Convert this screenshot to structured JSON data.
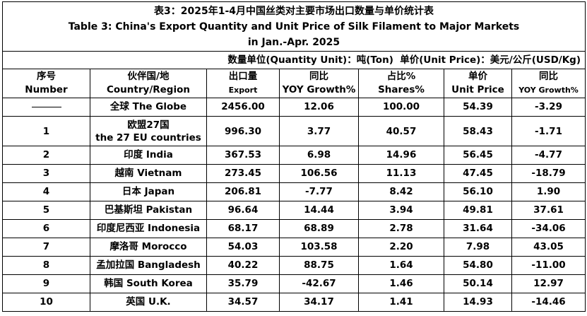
{
  "title": {
    "zh": "表3：2025年1-4月中国丝类对主要市场出口数量与单价统计表",
    "en1": "Table 3: China's Export Quantity and Unit Price of Silk Filament to Major Markets",
    "en2": "in Jan.-Apr. 2025"
  },
  "units": "数量单位(Quantity Unit)：吨(Ton)  单价(Unit Price)：美元/公斤(USD/Kg)",
  "headers": {
    "number": {
      "zh": "序号",
      "en": "Number"
    },
    "country": {
      "zh": "伙伴国/地",
      "en": "Country/Region"
    },
    "export": {
      "zh": "出口量",
      "en": "Export"
    },
    "yoy1": {
      "zh": "同比",
      "en": "YOY Growth%"
    },
    "shares": {
      "zh": "占比%",
      "en": "Shares%"
    },
    "price": {
      "zh": "单价",
      "en": "Unit Price"
    },
    "yoy2": {
      "zh": "同比",
      "en": "YOY Growth%"
    }
  },
  "rows": [
    {
      "num": "",
      "country": "全球 The Globe",
      "country2": "",
      "export": "2456.00",
      "yoy": "12.06",
      "share": "100.00",
      "price": "54.39",
      "price_yoy": "-3.29"
    },
    {
      "num": "1",
      "country": "欧盟27国",
      "country2": "the 27 EU countries",
      "export": "996.30",
      "yoy": "3.77",
      "share": "40.57",
      "price": "58.43",
      "price_yoy": "-1.71"
    },
    {
      "num": "2",
      "country": "印度 India",
      "country2": "",
      "export": "367.53",
      "yoy": "6.98",
      "share": "14.96",
      "price": "56.45",
      "price_yoy": "-4.77"
    },
    {
      "num": "3",
      "country": "越南 Vietnam",
      "country2": "",
      "export": "273.45",
      "yoy": "106.56",
      "share": "11.13",
      "price": "47.45",
      "price_yoy": "-18.79"
    },
    {
      "num": "4",
      "country": "日本 Japan",
      "country2": "",
      "export": "206.81",
      "yoy": "-7.77",
      "share": "8.42",
      "price": "56.10",
      "price_yoy": "1.90"
    },
    {
      "num": "5",
      "country": "巴基斯坦 Pakistan",
      "country2": "",
      "export": "96.64",
      "yoy": "14.44",
      "share": "3.94",
      "price": "49.81",
      "price_yoy": "37.61"
    },
    {
      "num": "6",
      "country": "印度尼西亚 Indonesia",
      "country2": "",
      "export": "68.17",
      "yoy": "68.89",
      "share": "2.78",
      "price": "31.64",
      "price_yoy": "-34.06"
    },
    {
      "num": "7",
      "country": "摩洛哥 Morocco",
      "country2": "",
      "export": "54.03",
      "yoy": "103.58",
      "share": "2.20",
      "price": "7.98",
      "price_yoy": "43.05"
    },
    {
      "num": "8",
      "country": "孟加拉国 Bangladesh",
      "country2": "",
      "export": "40.22",
      "yoy": "88.75",
      "share": "1.64",
      "price": "54.80",
      "price_yoy": "-11.00"
    },
    {
      "num": "9",
      "country": "韩国 South Korea",
      "country2": "",
      "export": "35.79",
      "yoy": "-42.67",
      "share": "1.46",
      "price": "50.14",
      "price_yoy": "12.97"
    },
    {
      "num": "10",
      "country": "英国 U.K.",
      "country2": "",
      "export": "34.57",
      "yoy": "34.17",
      "share": "1.41",
      "price": "14.93",
      "price_yoy": "-14.46"
    }
  ]
}
